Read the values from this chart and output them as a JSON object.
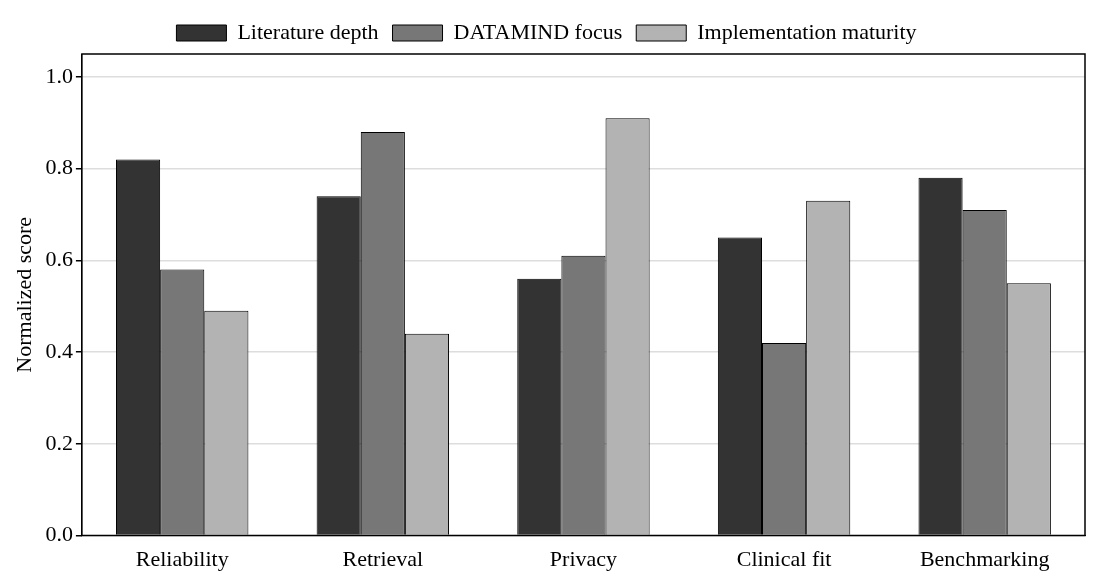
{
  "chart_data": {
    "type": "bar",
    "categories": [
      "Reliability",
      "Retrieval",
      "Privacy",
      "Clinical fit",
      "Benchmarking"
    ],
    "series": [
      {
        "name": "Literature depth",
        "color": "#333333",
        "values": [
          0.82,
          0.74,
          0.56,
          0.65,
          0.78
        ]
      },
      {
        "name": "DATAMIND focus",
        "color": "#777777",
        "values": [
          0.58,
          0.88,
          0.61,
          0.42,
          0.71
        ]
      },
      {
        "name": "Implementation maturity",
        "color": "#b3b3b3",
        "values": [
          0.49,
          0.44,
          0.91,
          0.73,
          0.55
        ]
      }
    ],
    "ylabel": "Normalized score",
    "ylim": [
      0,
      1.05
    ],
    "yticks": [
      {
        "value": 0,
        "label": "0.0"
      },
      {
        "value": 0.2,
        "label": "0.2"
      },
      {
        "value": 0.4,
        "label": "0.4"
      },
      {
        "value": 0.6,
        "label": "0.6"
      },
      {
        "value": 0.8,
        "label": "0.8"
      },
      {
        "value": 1,
        "label": "1.0"
      }
    ],
    "grid": "y",
    "legend": "top"
  }
}
